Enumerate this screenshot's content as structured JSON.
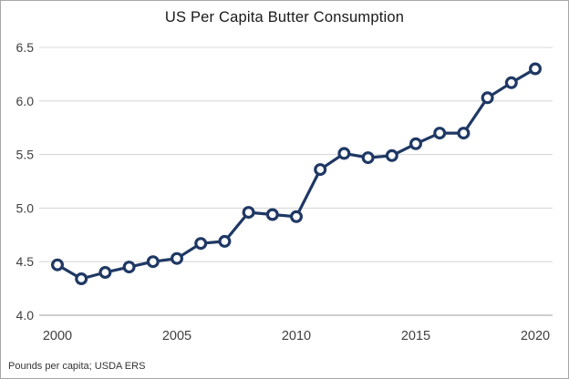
{
  "title": "US Per Capita Butter Consumption",
  "footer": {
    "source_note": "Pounds per capita; USDA ERS"
  },
  "chart_data": {
    "type": "line",
    "title": "US Per Capita Butter Consumption",
    "series_name": "US per capita butter consumption",
    "x": [
      2000,
      2001,
      2002,
      2003,
      2004,
      2005,
      2006,
      2007,
      2008,
      2009,
      2010,
      2011,
      2012,
      2013,
      2014,
      2015,
      2016,
      2017,
      2018,
      2019,
      2020
    ],
    "values": [
      4.47,
      4.34,
      4.4,
      4.45,
      4.5,
      4.53,
      4.67,
      4.69,
      4.96,
      4.94,
      4.92,
      5.36,
      5.51,
      5.47,
      5.49,
      5.6,
      5.7,
      5.7,
      6.03,
      6.17,
      6.3
    ],
    "xlabel": "",
    "ylabel": "",
    "units": "Pounds per capita",
    "source": "USDA ERS",
    "xlim": [
      2000,
      2020
    ],
    "ylim": [
      4.0,
      6.5
    ],
    "x_ticks": [
      {
        "v": 2000,
        "label": "2000"
      },
      {
        "v": 2005,
        "label": "2005"
      },
      {
        "v": 2010,
        "label": "2010"
      },
      {
        "v": 2015,
        "label": "2015"
      },
      {
        "v": 2020,
        "label": "2020"
      }
    ],
    "y_ticks": [
      {
        "v": 4.0,
        "label": "4.0"
      },
      {
        "v": 4.5,
        "label": "4.5"
      },
      {
        "v": 5.0,
        "label": "5.0"
      },
      {
        "v": 5.5,
        "label": "5.5"
      },
      {
        "v": 6.0,
        "label": "6.0"
      },
      {
        "v": 6.5,
        "label": "6.5"
      }
    ],
    "grid": "horizontal",
    "legend": "none",
    "marker": "open-circle",
    "colors": {
      "line": "#1F3864",
      "marker_fill": "#FFFFFF",
      "gridline": "#D9D9D9",
      "axis_line": "#BFBFBF",
      "tick_text": "#404040",
      "title_text": "#1A1A1A",
      "footer_text": "#333333",
      "frame_border": "#A6A6A6",
      "background": "#FFFFFF"
    }
  }
}
